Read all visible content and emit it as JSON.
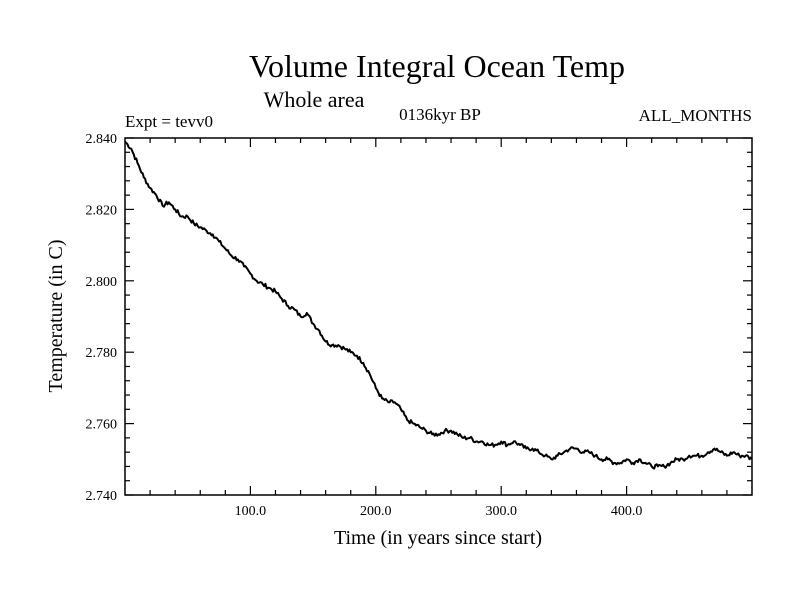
{
  "chart_data": {
    "type": "line",
    "title": "Volume Integral Ocean Temp",
    "subtitle": "Whole area",
    "annotations": {
      "left": "Expt = tevv0",
      "center": "0136kyr BP",
      "right": "ALL_MONTHS"
    },
    "xlabel": "Time (in years since start)",
    "ylabel": "Temperature (in C)",
    "xlim": [
      0,
      500
    ],
    "ylim": [
      2.74,
      2.84
    ],
    "xticks": [
      100,
      200,
      300,
      400
    ],
    "xtick_labels": [
      "100.0",
      "200.0",
      "300.0",
      "400.0"
    ],
    "yticks": [
      2.74,
      2.76,
      2.78,
      2.8,
      2.82,
      2.84
    ],
    "ytick_labels": [
      "2.740",
      "2.760",
      "2.780",
      "2.800",
      "2.820",
      "2.840"
    ],
    "grid": false,
    "line_color": "#000000",
    "series": [
      {
        "x": [
          0,
          5,
          10,
          15,
          20,
          25,
          30,
          35,
          40,
          45,
          50,
          55,
          60,
          65,
          70,
          75,
          80,
          85,
          90,
          95,
          100,
          105,
          110,
          115,
          120,
          125,
          130,
          135,
          140,
          145,
          150,
          155,
          160,
          165,
          170,
          175,
          180,
          185,
          190,
          195,
          200,
          205,
          210,
          215,
          220,
          225,
          230,
          235,
          240,
          245,
          250,
          255,
          260,
          265,
          270,
          275,
          280,
          285,
          290,
          295,
          300,
          305,
          310,
          315,
          320,
          325,
          330,
          335,
          340,
          345,
          350,
          355,
          360,
          365,
          370,
          375,
          380,
          385,
          390,
          395,
          400,
          405,
          410,
          415,
          420,
          425,
          430,
          435,
          440,
          445,
          450,
          455,
          460,
          465,
          470,
          475,
          480,
          485,
          490,
          495,
          500
        ],
        "values": [
          2.839,
          2.837,
          2.833,
          2.829,
          2.826,
          2.824,
          2.821,
          2.822,
          2.82,
          2.818,
          2.818,
          2.816,
          2.815,
          2.814,
          2.813,
          2.811,
          2.809,
          2.807,
          2.806,
          2.804,
          2.802,
          2.8,
          2.799,
          2.798,
          2.797,
          2.795,
          2.793,
          2.792,
          2.79,
          2.791,
          2.788,
          2.786,
          2.783,
          2.782,
          2.782,
          2.781,
          2.78,
          2.779,
          2.777,
          2.774,
          2.77,
          2.767,
          2.766,
          2.766,
          2.764,
          2.761,
          2.76,
          2.759,
          2.758,
          2.757,
          2.757,
          2.758,
          2.758,
          2.757,
          2.756,
          2.756,
          2.755,
          2.755,
          2.754,
          2.754,
          2.755,
          2.754,
          2.755,
          2.754,
          2.753,
          2.753,
          2.752,
          2.751,
          2.75,
          2.751,
          2.752,
          2.753,
          2.753,
          2.752,
          2.752,
          2.751,
          2.75,
          2.75,
          2.749,
          2.749,
          2.75,
          2.749,
          2.75,
          2.749,
          2.748,
          2.748,
          2.748,
          2.749,
          2.75,
          2.75,
          2.751,
          2.751,
          2.751,
          2.752,
          2.753,
          2.752,
          2.751,
          2.752,
          2.751,
          2.751,
          2.75
        ]
      }
    ]
  }
}
